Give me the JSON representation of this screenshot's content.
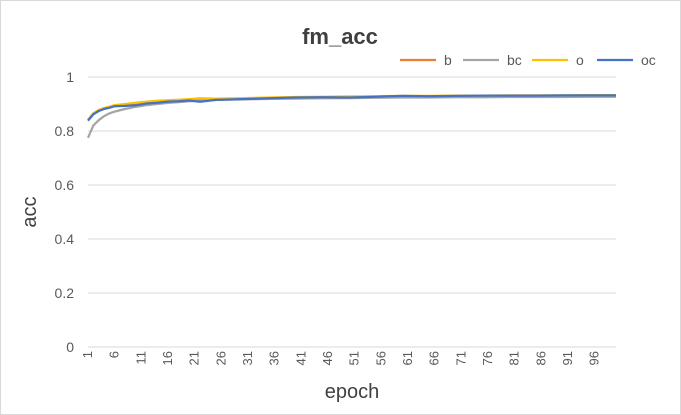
{
  "chart_data": {
    "type": "line",
    "title": "fm_acc",
    "xlabel": "epoch",
    "ylabel": "acc",
    "ylim": [
      0,
      1
    ],
    "yticks": [
      0,
      0.2,
      0.4,
      0.6,
      0.8,
      1
    ],
    "ytick_labels": [
      "0",
      "0.2",
      "0.4",
      "0.6",
      "0.8",
      "1"
    ],
    "xlim": [
      1,
      100
    ],
    "xticks": [
      1,
      6,
      11,
      16,
      21,
      26,
      31,
      36,
      41,
      46,
      51,
      56,
      61,
      66,
      71,
      76,
      81,
      86,
      91,
      96
    ],
    "xtick_labels": [
      "1",
      "6",
      "11",
      "16",
      "21",
      "26",
      "31",
      "36",
      "41",
      "46",
      "51",
      "56",
      "61",
      "66",
      "71",
      "76",
      "81",
      "86",
      "91",
      "96"
    ],
    "grid": "horizontal",
    "legend_position": "top-right",
    "x": [
      1,
      2,
      3,
      4,
      5,
      6,
      8,
      10,
      12,
      14,
      16,
      18,
      20,
      22,
      25,
      30,
      35,
      40,
      45,
      50,
      55,
      60,
      65,
      70,
      75,
      80,
      85,
      90,
      95,
      100
    ],
    "series": [
      {
        "name": "b",
        "color": "#ED7D31",
        "values": [
          0.84,
          0.862,
          0.875,
          0.882,
          0.887,
          0.893,
          0.897,
          0.901,
          0.905,
          0.908,
          0.91,
          0.912,
          0.914,
          0.916,
          0.918,
          0.92,
          0.922,
          0.924,
          0.925,
          0.926,
          0.927,
          0.928,
          0.928,
          0.929,
          0.929,
          0.93,
          0.93,
          0.93,
          0.931,
          0.931
        ]
      },
      {
        "name": "bc",
        "color": "#A5A5A5",
        "values": [
          0.775,
          0.82,
          0.84,
          0.855,
          0.865,
          0.872,
          0.882,
          0.89,
          0.896,
          0.9,
          0.904,
          0.907,
          0.91,
          0.912,
          0.915,
          0.917,
          0.919,
          0.92,
          0.921,
          0.922,
          0.923,
          0.924,
          0.924,
          0.925,
          0.925,
          0.926,
          0.926,
          0.926,
          0.927,
          0.927
        ]
      },
      {
        "name": "o",
        "color": "#FFC000",
        "values": [
          0.842,
          0.866,
          0.878,
          0.885,
          0.89,
          0.896,
          0.9,
          0.905,
          0.909,
          0.912,
          0.914,
          0.916,
          0.918,
          0.921,
          0.92,
          0.922,
          0.924,
          0.926,
          0.927,
          0.928,
          0.929,
          0.93,
          0.93,
          0.931,
          0.931,
          0.932,
          0.932,
          0.932,
          0.933,
          0.933
        ]
      },
      {
        "name": "oc",
        "color": "#4472C4",
        "values": [
          0.838,
          0.862,
          0.874,
          0.882,
          0.886,
          0.892,
          0.893,
          0.895,
          0.902,
          0.905,
          0.909,
          0.91,
          0.913,
          0.908,
          0.915,
          0.918,
          0.921,
          0.924,
          0.925,
          0.924,
          0.927,
          0.93,
          0.929,
          0.93,
          0.931,
          0.931,
          0.931,
          0.932,
          0.932,
          0.932
        ]
      }
    ]
  }
}
